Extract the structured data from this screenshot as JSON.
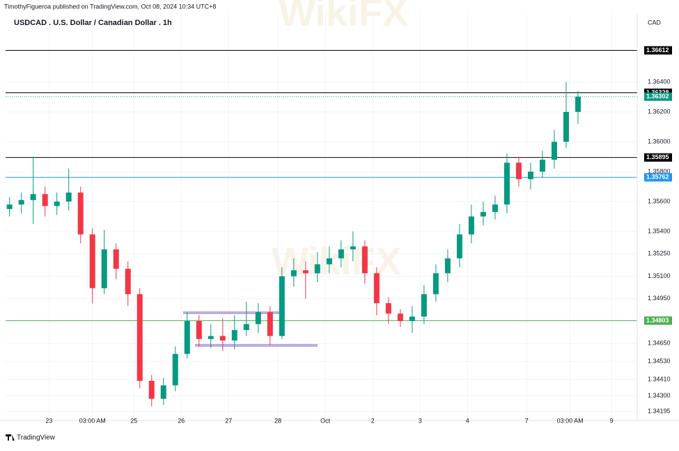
{
  "chart_data": {
    "type": "candlestick",
    "header": "TimothyFigueroa published on TradingView.com, Oct 08, 2024 10:34 UTC+8",
    "title": "USDCAD . U.S. Dollar / Canadian Dollar . 1h",
    "currency": "CAD",
    "footer": "TradingView",
    "watermark": "WikiFX",
    "up_color": "#089981",
    "down_color": "#f23645",
    "x": [
      2,
      8,
      14,
      20,
      26,
      32,
      38,
      44,
      50,
      56,
      62,
      68,
      74,
      80,
      86,
      92,
      98,
      104,
      110,
      116,
      122,
      128,
      134,
      140,
      146,
      152,
      158,
      164,
      170,
      176,
      182,
      188,
      194,
      200,
      206,
      212,
      218,
      224,
      230,
      236,
      242,
      248,
      254,
      260,
      266,
      272,
      278,
      284,
      290
    ],
    "open": [
      1.3555,
      1.3558,
      1.3561,
      1.3565,
      1.3557,
      1.356,
      1.3566,
      1.3538,
      1.3502,
      1.3528,
      1.3515,
      1.3498,
      1.344,
      1.3428,
      1.3437,
      1.3458,
      1.348,
      1.3468,
      1.347,
      1.3467,
      1.3474,
      1.3478,
      1.3486,
      1.347,
      1.351,
      1.3514,
      1.3512,
      1.3518,
      1.3522,
      1.3528,
      1.353,
      1.3512,
      1.3492,
      1.3485,
      1.348,
      1.3483,
      1.3498,
      1.3512,
      1.3522,
      1.3538,
      1.355,
      1.3553,
      1.3558,
      1.3586,
      1.3575,
      1.358,
      1.3588,
      1.36,
      1.362
    ],
    "high": [
      1.3563,
      1.3566,
      1.359,
      1.357,
      1.3566,
      1.3582,
      1.357,
      1.3542,
      1.3541,
      1.3532,
      1.352,
      1.3502,
      1.3444,
      1.3442,
      1.3463,
      1.3486,
      1.3484,
      1.3478,
      1.3482,
      1.3484,
      1.3493,
      1.3492,
      1.349,
      1.3516,
      1.3522,
      1.352,
      1.3526,
      1.353,
      1.3534,
      1.354,
      1.3534,
      1.3516,
      1.3496,
      1.3488,
      1.349,
      1.3504,
      1.3518,
      1.3528,
      1.3545,
      1.3558,
      1.356,
      1.3564,
      1.3592,
      1.359,
      1.3586,
      1.3594,
      1.3608,
      1.364,
      1.3634
    ],
    "low": [
      1.355,
      1.3552,
      1.3545,
      1.355,
      1.3551,
      1.3554,
      1.3532,
      1.3492,
      1.3498,
      1.3508,
      1.349,
      1.3435,
      1.3423,
      1.3424,
      1.3433,
      1.3455,
      1.3463,
      1.3462,
      1.346,
      1.3461,
      1.347,
      1.3472,
      1.3464,
      1.3468,
      1.3503,
      1.3495,
      1.3506,
      1.3512,
      1.3516,
      1.352,
      1.3505,
      1.3484,
      1.3478,
      1.3476,
      1.3472,
      1.3478,
      1.3493,
      1.3506,
      1.3516,
      1.3532,
      1.3544,
      1.3548,
      1.3552,
      1.357,
      1.3568,
      1.3576,
      1.3582,
      1.3596,
      1.3612
    ],
    "close": [
      1.3558,
      1.3561,
      1.3565,
      1.3557,
      1.356,
      1.3566,
      1.3538,
      1.3502,
      1.3528,
      1.3515,
      1.3498,
      1.344,
      1.3428,
      1.3437,
      1.3458,
      1.348,
      1.3468,
      1.347,
      1.3467,
      1.3474,
      1.3478,
      1.3486,
      1.347,
      1.351,
      1.3514,
      1.3512,
      1.3518,
      1.3522,
      1.3528,
      1.353,
      1.3512,
      1.3492,
      1.3485,
      1.348,
      1.3483,
      1.3498,
      1.3512,
      1.3522,
      1.3538,
      1.355,
      1.3553,
      1.3558,
      1.3586,
      1.3575,
      1.358,
      1.3588,
      1.36,
      1.362,
      1.36302
    ],
    "xlim": [
      0,
      320
    ],
    "xticks": [
      {
        "value": 22,
        "label": "23"
      },
      {
        "value": 44,
        "label": "03:00 AM"
      },
      {
        "value": 65,
        "label": "25"
      },
      {
        "value": 89,
        "label": "26"
      },
      {
        "value": 113,
        "label": "27"
      },
      {
        "value": 138,
        "label": "28"
      },
      {
        "value": 162,
        "label": "Oct"
      },
      {
        "value": 186,
        "label": "2"
      },
      {
        "value": 210,
        "label": "3"
      },
      {
        "value": 234,
        "label": "4"
      },
      {
        "value": 264,
        "label": "7"
      },
      {
        "value": 286,
        "label": "03:00 AM"
      },
      {
        "value": 307,
        "label": "9"
      }
    ],
    "ylim": [
      1.34135,
      1.36856
    ],
    "yticks": [
      {
        "value": 1.364,
        "label": "1.36400"
      },
      {
        "value": 1.362,
        "label": "1.36200"
      },
      {
        "value": 1.36,
        "label": "1.36000"
      },
      {
        "value": 1.358,
        "label": "1.35800"
      },
      {
        "value": 1.356,
        "label": "1.35600"
      },
      {
        "value": 1.354,
        "label": "1.35400"
      },
      {
        "value": 1.3525,
        "label": "1.35250"
      },
      {
        "value": 1.351,
        "label": "1.35100"
      },
      {
        "value": 1.3495,
        "label": "1.34950"
      },
      {
        "value": 1.3465,
        "label": "1.34650"
      },
      {
        "value": 1.3453,
        "label": "1.34530"
      },
      {
        "value": 1.3441,
        "label": "1.34410"
      },
      {
        "value": 1.343,
        "label": "1.34300"
      },
      1.34195
    ],
    "price_lines": [
      {
        "value": 1.36612,
        "color": "#000000",
        "dotted": false
      },
      {
        "value": 1.36328,
        "color": "#000000",
        "dotted": false
      },
      {
        "value": 1.36302,
        "color": "#089981",
        "dotted": true
      },
      {
        "value": 1.35895,
        "color": "#000000",
        "dotted": false
      },
      {
        "value": 1.35762,
        "color": "#2196f3",
        "dotted": false
      },
      {
        "value": 1.34803,
        "color": "#4caf50",
        "dotted": false
      }
    ]
  }
}
